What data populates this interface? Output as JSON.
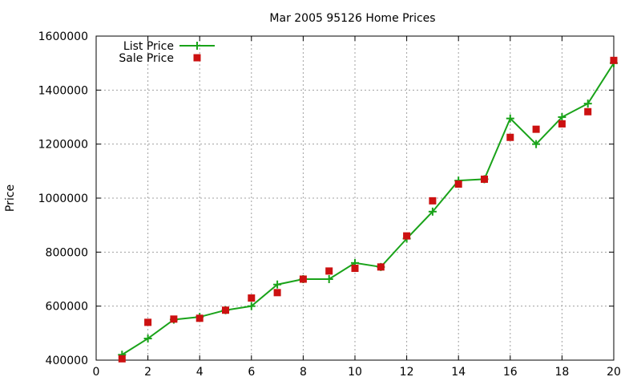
{
  "chart_data": {
    "type": "line",
    "title": "Mar 2005 95126 Home Prices",
    "xlabel": "",
    "ylabel": "Price",
    "xlim": [
      0,
      20
    ],
    "ylim": [
      400000,
      1600000
    ],
    "xticks": [
      0,
      2,
      4,
      6,
      8,
      10,
      12,
      14,
      16,
      18,
      20
    ],
    "yticks": [
      400000,
      600000,
      800000,
      1000000,
      1200000,
      1400000,
      1600000
    ],
    "grid": true,
    "legend_position": "top-left",
    "series": [
      {
        "name": "List Price",
        "style": "line with plus markers",
        "color": "#1aa31a",
        "x": [
          1,
          2,
          3,
          4,
          5,
          6,
          7,
          8,
          9,
          10,
          11,
          12,
          13,
          14,
          15,
          16,
          17,
          18,
          19,
          20
        ],
        "y": [
          420000,
          480000,
          550000,
          560000,
          585000,
          600000,
          680000,
          700000,
          700000,
          760000,
          745000,
          850000,
          950000,
          1065000,
          1070000,
          1295000,
          1200000,
          1300000,
          1350000,
          1500000
        ]
      },
      {
        "name": "Sale Price",
        "style": "square markers",
        "color": "#cc1111",
        "x": [
          1,
          2,
          3,
          4,
          5,
          6,
          7,
          8,
          9,
          10,
          11,
          12,
          13,
          14,
          15,
          16,
          17,
          18,
          19,
          20
        ],
        "y": [
          405000,
          540000,
          552000,
          555000,
          585000,
          630000,
          650000,
          700000,
          730000,
          740000,
          745000,
          860000,
          990000,
          1052000,
          1070000,
          1225000,
          1255000,
          1275000,
          1320000,
          1510000
        ]
      }
    ]
  }
}
